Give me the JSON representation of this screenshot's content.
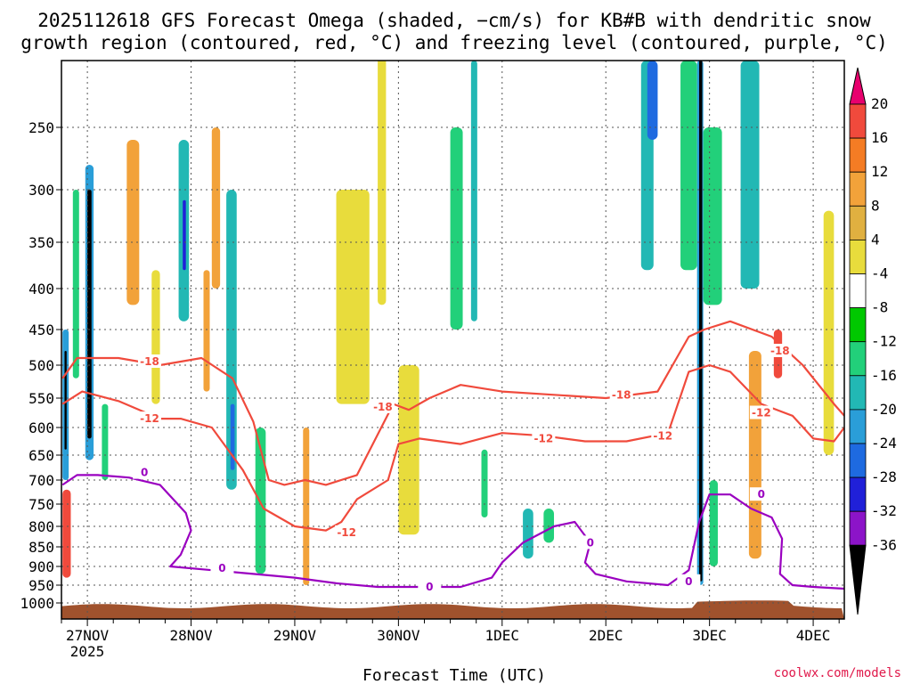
{
  "chart_data": {
    "type": "heatmap",
    "title_line1": "2025112618 GFS Forecast Omega (shaded, −cm/s) for KB#B with dendritic snow",
    "title_line2": "growth region (contoured, red, °C) and freezing level (contoured, purple, °C)",
    "xlabel": "Forecast Time (UTC)",
    "source": "coolwx.com/models",
    "x_axis": {
      "unit": "days since 26 Nov 2025 00 UTC",
      "range": [
        0.75,
        8.3
      ],
      "ticks": [
        {
          "label": "27NOV",
          "value": 1
        },
        {
          "label": "28NOV",
          "value": 2
        },
        {
          "label": "29NOV",
          "value": 3
        },
        {
          "label": "30NOV",
          "value": 4
        },
        {
          "label": "1DEC",
          "value": 5
        },
        {
          "label": "2DEC",
          "value": 6
        },
        {
          "label": "3DEC",
          "value": 7
        },
        {
          "label": "4DEC",
          "value": 8
        }
      ],
      "year_label": "2025"
    },
    "y_axis": {
      "unit": "hPa",
      "range": [
        1015,
        200
      ],
      "ticks": [
        250,
        300,
        350,
        400,
        450,
        500,
        550,
        600,
        650,
        700,
        750,
        800,
        850,
        900,
        950,
        1000
      ]
    },
    "colorbar": {
      "labels": [
        20,
        16,
        12,
        8,
        4,
        -4,
        -8,
        -12,
        -16,
        -20,
        -24,
        -28,
        -32,
        -36
      ],
      "colors": [
        "#e8006e",
        "#f04a3c",
        "#f47c24",
        "#f2a23a",
        "#e0b040",
        "#e8dc3c",
        "#ffffff",
        "#00c800",
        "#22d07a",
        "#22b8b4",
        "#2a9ed8",
        "#1e6ae0",
        "#2020d8",
        "#8c14c8",
        "#9a00c0",
        "#b4b4b4",
        "#000000"
      ]
    },
    "omega_cells": [
      {
        "t0": 0.76,
        "t1": 0.82,
        "p0": 450,
        "p1": 700,
        "v": -16
      },
      {
        "t0": 0.78,
        "t1": 0.8,
        "p0": 480,
        "p1": 640,
        "v": -36
      },
      {
        "t0": 0.76,
        "t1": 0.84,
        "p0": 720,
        "p1": 930,
        "v": 16
      },
      {
        "t0": 0.86,
        "t1": 0.92,
        "p0": 300,
        "p1": 520,
        "v": -8
      },
      {
        "t0": 0.98,
        "t1": 1.06,
        "p0": 280,
        "p1": 660,
        "v": -16
      },
      {
        "t0": 1.0,
        "t1": 1.04,
        "p0": 300,
        "p1": 620,
        "v": -36
      },
      {
        "t0": 1.14,
        "t1": 1.2,
        "p0": 560,
        "p1": 700,
        "v": -8
      },
      {
        "t0": 1.38,
        "t1": 1.5,
        "p0": 260,
        "p1": 420,
        "v": 8
      },
      {
        "t0": 1.62,
        "t1": 1.7,
        "p0": 380,
        "p1": 560,
        "v": 4
      },
      {
        "t0": 1.88,
        "t1": 1.98,
        "p0": 260,
        "p1": 440,
        "v": -12
      },
      {
        "t0": 1.92,
        "t1": 1.95,
        "p0": 310,
        "p1": 380,
        "v": -24
      },
      {
        "t0": 2.12,
        "t1": 2.18,
        "p0": 380,
        "p1": 540,
        "v": 8
      },
      {
        "t0": 2.2,
        "t1": 2.28,
        "p0": 250,
        "p1": 400,
        "v": 8
      },
      {
        "t0": 2.34,
        "t1": 2.44,
        "p0": 300,
        "p1": 720,
        "v": -12
      },
      {
        "t0": 2.38,
        "t1": 2.42,
        "p0": 560,
        "p1": 680,
        "v": -20
      },
      {
        "t0": 2.62,
        "t1": 2.72,
        "p0": 600,
        "p1": 920,
        "v": -8
      },
      {
        "t0": 3.08,
        "t1": 3.14,
        "p0": 600,
        "p1": 950,
        "v": 8
      },
      {
        "t0": 3.4,
        "t1": 3.72,
        "p0": 300,
        "p1": 560,
        "v": 4
      },
      {
        "t0": 3.8,
        "t1": 3.88,
        "p0": 120,
        "p1": 420,
        "v": 4
      },
      {
        "t0": 4.0,
        "t1": 4.2,
        "p0": 500,
        "p1": 820,
        "v": 4
      },
      {
        "t0": 4.5,
        "t1": 4.62,
        "p0": 250,
        "p1": 450,
        "v": -8
      },
      {
        "t0": 4.7,
        "t1": 4.76,
        "p0": 200,
        "p1": 440,
        "v": -12
      },
      {
        "t0": 4.8,
        "t1": 4.86,
        "p0": 640,
        "p1": 780,
        "v": -8
      },
      {
        "t0": 5.2,
        "t1": 5.3,
        "p0": 760,
        "p1": 880,
        "v": -12
      },
      {
        "t0": 5.4,
        "t1": 5.5,
        "p0": 760,
        "p1": 840,
        "v": -8
      },
      {
        "t0": 6.34,
        "t1": 6.46,
        "p0": 200,
        "p1": 380,
        "v": -12
      },
      {
        "t0": 6.4,
        "t1": 6.5,
        "p0": 200,
        "p1": 260,
        "v": -20
      },
      {
        "t0": 6.72,
        "t1": 6.88,
        "p0": 200,
        "p1": 380,
        "v": -8
      },
      {
        "t0": 6.88,
        "t1": 6.94,
        "p0": 200,
        "p1": 950,
        "v": -16
      },
      {
        "t0": 6.9,
        "t1": 6.93,
        "p0": 200,
        "p1": 940,
        "v": -36
      },
      {
        "t0": 6.94,
        "t1": 7.12,
        "p0": 250,
        "p1": 420,
        "v": -8
      },
      {
        "t0": 7.0,
        "t1": 7.08,
        "p0": 700,
        "p1": 900,
        "v": -8
      },
      {
        "t0": 7.3,
        "t1": 7.48,
        "p0": 200,
        "p1": 400,
        "v": -12
      },
      {
        "t0": 7.38,
        "t1": 7.5,
        "p0": 480,
        "p1": 880,
        "v": 8
      },
      {
        "t0": 7.62,
        "t1": 7.7,
        "p0": 450,
        "p1": 520,
        "v": 16
      },
      {
        "t0": 8.1,
        "t1": 8.2,
        "p0": 320,
        "p1": 650,
        "v": 4
      }
    ],
    "contours": [
      {
        "name": "-18",
        "color": "#f04a3c",
        "label_at": [
          {
            "t": 1.6,
            "p": 495
          },
          {
            "t": 3.85,
            "p": 565
          },
          {
            "t": 6.15,
            "p": 545
          },
          {
            "t": 7.68,
            "p": 480
          }
        ],
        "points": [
          [
            0.76,
            520
          ],
          [
            0.9,
            490
          ],
          [
            1.3,
            490
          ],
          [
            1.7,
            500
          ],
          [
            2.1,
            490
          ],
          [
            2.4,
            520
          ],
          [
            2.6,
            590
          ],
          [
            2.75,
            700
          ],
          [
            2.9,
            710
          ],
          [
            3.1,
            700
          ],
          [
            3.3,
            710
          ],
          [
            3.6,
            690
          ],
          [
            3.95,
            560
          ],
          [
            4.1,
            570
          ],
          [
            4.3,
            550
          ],
          [
            4.6,
            530
          ],
          [
            5.0,
            540
          ],
          [
            5.5,
            545
          ],
          [
            6.0,
            550
          ],
          [
            6.5,
            540
          ],
          [
            6.8,
            460
          ],
          [
            6.95,
            450
          ],
          [
            7.2,
            440
          ],
          [
            7.6,
            460
          ],
          [
            7.9,
            500
          ],
          [
            8.2,
            560
          ],
          [
            8.3,
            580
          ]
        ]
      },
      {
        "name": "-12",
        "color": "#f04a3c",
        "label_at": [
          {
            "t": 1.6,
            "p": 585
          },
          {
            "t": 3.5,
            "p": 815
          },
          {
            "t": 5.4,
            "p": 620
          },
          {
            "t": 6.55,
            "p": 615
          },
          {
            "t": 7.5,
            "p": 575
          }
        ],
        "points": [
          [
            0.76,
            560
          ],
          [
            0.95,
            540
          ],
          [
            1.3,
            555
          ],
          [
            1.7,
            585
          ],
          [
            1.9,
            585
          ],
          [
            2.2,
            600
          ],
          [
            2.5,
            680
          ],
          [
            2.7,
            760
          ],
          [
            3.0,
            800
          ],
          [
            3.3,
            810
          ],
          [
            3.45,
            790
          ],
          [
            3.6,
            740
          ],
          [
            3.9,
            700
          ],
          [
            4.0,
            630
          ],
          [
            4.2,
            620
          ],
          [
            4.6,
            630
          ],
          [
            5.0,
            610
          ],
          [
            5.4,
            615
          ],
          [
            5.8,
            625
          ],
          [
            6.2,
            625
          ],
          [
            6.6,
            610
          ],
          [
            6.8,
            510
          ],
          [
            7.0,
            500
          ],
          [
            7.2,
            510
          ],
          [
            7.5,
            560
          ],
          [
            7.8,
            580
          ],
          [
            8.0,
            620
          ],
          [
            8.2,
            625
          ],
          [
            8.3,
            600
          ]
        ]
      },
      {
        "name": "0",
        "color": "#9a00c0",
        "label_at": [
          {
            "t": 1.55,
            "p": 685
          },
          {
            "t": 2.3,
            "p": 905
          },
          {
            "t": 4.3,
            "p": 955
          },
          {
            "t": 5.85,
            "p": 840
          },
          {
            "t": 6.8,
            "p": 940
          },
          {
            "t": 7.5,
            "p": 730
          }
        ],
        "points": [
          [
            0.76,
            710
          ],
          [
            0.9,
            690
          ],
          [
            1.1,
            690
          ],
          [
            1.4,
            695
          ],
          [
            1.7,
            710
          ],
          [
            1.95,
            770
          ],
          [
            2.0,
            810
          ],
          [
            1.9,
            870
          ],
          [
            1.8,
            900
          ],
          [
            2.2,
            910
          ],
          [
            2.6,
            920
          ],
          [
            3.0,
            930
          ],
          [
            3.4,
            945
          ],
          [
            3.8,
            955
          ],
          [
            4.2,
            955
          ],
          [
            4.6,
            955
          ],
          [
            4.9,
            930
          ],
          [
            5.0,
            890
          ],
          [
            5.2,
            840
          ],
          [
            5.5,
            800
          ],
          [
            5.7,
            790
          ],
          [
            5.85,
            840
          ],
          [
            5.8,
            890
          ],
          [
            5.9,
            920
          ],
          [
            6.2,
            940
          ],
          [
            6.6,
            950
          ],
          [
            6.8,
            910
          ],
          [
            6.9,
            790
          ],
          [
            7.0,
            730
          ],
          [
            7.2,
            730
          ],
          [
            7.4,
            760
          ],
          [
            7.6,
            780
          ],
          [
            7.7,
            830
          ],
          [
            7.68,
            920
          ],
          [
            7.8,
            950
          ],
          [
            8.0,
            955
          ],
          [
            8.3,
            960
          ]
        ]
      }
    ]
  }
}
